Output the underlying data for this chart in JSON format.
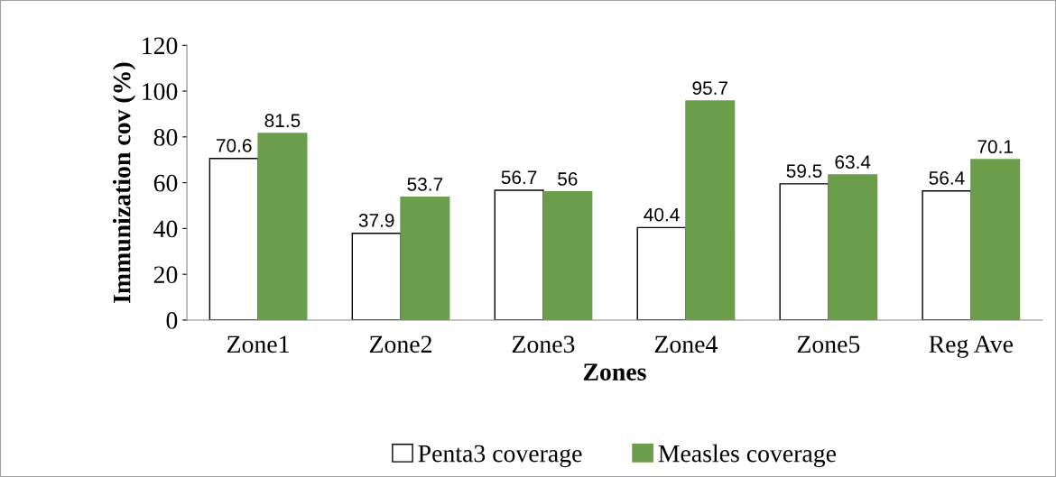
{
  "chart_data": {
    "type": "bar",
    "xlabel": "Zones",
    "ylabel": "Immunization cov (%)",
    "categories": [
      "Zone1",
      "Zone2",
      "Zone3",
      "Zone4",
      "Zone5",
      "Reg Ave"
    ],
    "series": [
      {
        "name": "Penta3 coverage",
        "color": "#ffffff",
        "values": [
          70.6,
          37.9,
          56.7,
          40.4,
          59.5,
          56.4
        ]
      },
      {
        "name": "Measles coverage",
        "color": "#6b9e4a",
        "values": [
          81.5,
          53.7,
          56,
          95.7,
          63.4,
          70.1
        ]
      }
    ],
    "ylim": [
      0,
      120
    ],
    "yticks": [
      0,
      20,
      40,
      60,
      80,
      100,
      120
    ],
    "data_labels": true,
    "grid": false,
    "legend": "bottom"
  }
}
